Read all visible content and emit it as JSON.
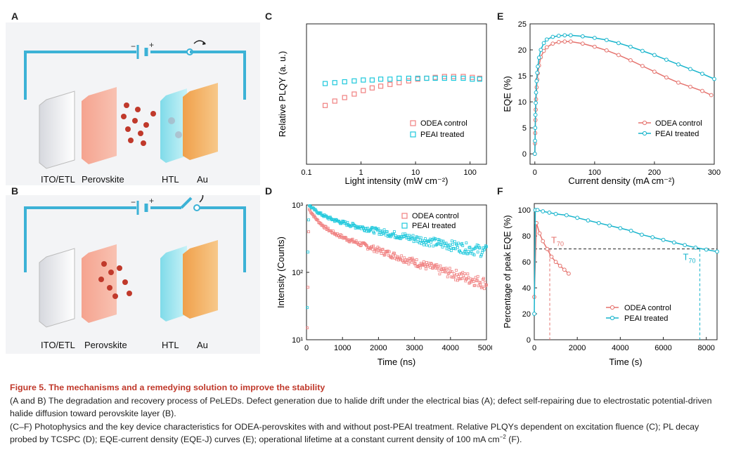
{
  "panels": {
    "A": {
      "letter": "A",
      "layers": [
        "ITO/ETL",
        "Perovskite",
        "HTL",
        "Au"
      ],
      "battery_minus": "−",
      "battery_plus": "+"
    },
    "B": {
      "letter": "B",
      "layers": [
        "ITO/ETL",
        "Perovskite",
        "HTL",
        "Au"
      ],
      "battery_minus": "−",
      "battery_plus": "+"
    }
  },
  "colors": {
    "odea": "#f08080",
    "peai": "#1ec8dc",
    "odea_dark": "#e5736e",
    "peai_dark": "#17b4cc"
  },
  "legend": {
    "odea": "ODEA control",
    "peai": "PEAI treated"
  },
  "chart_data": [
    {
      "panel": "C",
      "type": "scatter",
      "ylabel": "Relative PLQY (a. u.)",
      "xlabel": "Light intensity (mW cm⁻²)",
      "xscale": "log",
      "xlim": [
        0.1,
        200
      ],
      "ylim": [
        0,
        1.6
      ],
      "xticks": [
        "0.1",
        "1",
        "10",
        "100"
      ],
      "series": [
        {
          "name": "ODEA control",
          "x": [
            0.22,
            0.33,
            0.5,
            0.75,
            1.1,
            1.6,
            2.3,
            3.4,
            5,
            7.5,
            11,
            16,
            23,
            34,
            50,
            75,
            110,
            150
          ],
          "y": [
            0.67,
            0.72,
            0.76,
            0.8,
            0.84,
            0.87,
            0.89,
            0.91,
            0.93,
            0.95,
            0.97,
            0.98,
            0.99,
            1.0,
            1.0,
            1.0,
            0.99,
            0.98
          ]
        },
        {
          "name": "PEAI treated",
          "x": [
            0.22,
            0.33,
            0.5,
            0.75,
            1.1,
            1.6,
            2.3,
            3.4,
            5,
            7.5,
            11,
            16,
            23,
            34,
            50,
            75,
            110,
            150
          ],
          "y": [
            0.92,
            0.93,
            0.94,
            0.95,
            0.96,
            0.96,
            0.97,
            0.97,
            0.98,
            0.98,
            0.98,
            0.98,
            0.98,
            0.98,
            0.98,
            0.98,
            0.97,
            0.97
          ]
        }
      ]
    },
    {
      "panel": "D",
      "type": "scatter",
      "ylabel": "Intensity (Counts)",
      "xlabel": "Time (ns)",
      "yscale": "log",
      "xlim": [
        0,
        5000
      ],
      "ylim": [
        10,
        1000
      ],
      "xticks": [
        "0",
        "1000",
        "2000",
        "3000",
        "4000",
        "5000"
      ],
      "yticks": [
        "10¹",
        "10²",
        "10³"
      ],
      "series": [
        {
          "name": "ODEA control",
          "model": {
            "a1": 520,
            "t1": 250,
            "a2": 480,
            "t2": 2200,
            "bg": 20
          }
        },
        {
          "name": "PEAI treated",
          "model": {
            "a1": 380,
            "t1": 300,
            "a2": 620,
            "t2": 3000,
            "bg": 90
          }
        }
      ]
    },
    {
      "panel": "E",
      "type": "line",
      "ylabel": "EQE (%)",
      "xlabel": "Current density (mA cm⁻²)",
      "xlim": [
        -8,
        300
      ],
      "ylim": [
        -2,
        25
      ],
      "xticks": [
        "0",
        "100",
        "200",
        "300"
      ],
      "yticks": [
        "0",
        "5",
        "10",
        "15",
        "20",
        "25"
      ],
      "series": [
        {
          "name": "ODEA control",
          "x": [
            0,
            0.3,
            0.6,
            1,
            1.5,
            2,
            3,
            4,
            5,
            7,
            10,
            15,
            20,
            30,
            40,
            50,
            60,
            80,
            100,
            120,
            140,
            160,
            180,
            200,
            220,
            240,
            260,
            280,
            295
          ],
          "y": [
            0,
            2,
            4,
            6.5,
            8.5,
            10.5,
            12.8,
            14.3,
            15.5,
            17,
            18.6,
            19.8,
            20.5,
            21.2,
            21.5,
            21.6,
            21.6,
            21.2,
            20.6,
            19.9,
            19.0,
            18.0,
            16.9,
            15.8,
            14.7,
            13.7,
            12.9,
            12.1,
            11.3
          ]
        },
        {
          "name": "PEAI treated",
          "x": [
            0,
            0.3,
            0.6,
            1,
            1.5,
            2,
            3,
            4,
            5,
            7,
            10,
            15,
            20,
            30,
            40,
            50,
            60,
            80,
            100,
            120,
            140,
            160,
            180,
            200,
            220,
            240,
            260,
            280,
            300
          ],
          "y": [
            0,
            2.5,
            5,
            7.5,
            9.8,
            11.8,
            14,
            15.6,
            16.8,
            18.5,
            20,
            21.3,
            22,
            22.5,
            22.7,
            22.8,
            22.8,
            22.6,
            22.3,
            21.9,
            21.3,
            20.6,
            19.8,
            19.0,
            18.1,
            17.2,
            16.3,
            15.4,
            14.4
          ]
        }
      ]
    },
    {
      "panel": "F",
      "type": "line",
      "ylabel": "Percentage of peak EQE (%)",
      "xlabel": "Time (s)",
      "xlim": [
        0,
        8500
      ],
      "ylim": [
        0,
        105
      ],
      "xticks": [
        "0",
        "2000",
        "4000",
        "6000",
        "8000"
      ],
      "yticks": [
        "0",
        "20",
        "40",
        "60",
        "80",
        "100"
      ],
      "t70_label": "T",
      "t70_sub": "70",
      "t70_odea": 720,
      "t70_peai": 7700,
      "series": [
        {
          "name": "ODEA control",
          "x": [
            0,
            100,
            250,
            400,
            600,
            800,
            1000,
            1200,
            1400,
            1600
          ],
          "y": [
            33,
            90,
            82,
            76,
            70,
            64,
            60,
            57,
            54,
            51
          ]
        },
        {
          "name": "PEAI treated",
          "x": [
            0,
            50,
            150,
            400,
            700,
            1000,
            1500,
            2000,
            2500,
            3000,
            3500,
            4000,
            4500,
            5000,
            5500,
            6000,
            6500,
            7000,
            7500,
            8000,
            8500
          ],
          "y": [
            20,
            100,
            100,
            99,
            98,
            97,
            96,
            94,
            92,
            90,
            88,
            86,
            84,
            81,
            79,
            77,
            75,
            73,
            71,
            69.5,
            68
          ]
        }
      ]
    }
  ],
  "caption": {
    "title": "Figure 5.  The mechanisms and a remedying solution to improve the stability",
    "p1": "(A and B) The degradation and recovery process of PeLEDs. Defect generation due to halide drift under the electrical bias (A); defect self-repairing due to electrostatic potential-driven halide diffusion toward perovskite layer (B).",
    "p2a": "(C–F) Photophysics and the key device characteristics for ODEA-perovskites with and without post-PEAI treatment. Relative PLQYs dependent on excitation fluence (C); PL decay probed by TCSPC (D); EQE-current density (EQE-J) curves (E); operational lifetime at a constant current density of 100 mA cm",
    "p2sup": "−2",
    "p2b": " (F)."
  }
}
